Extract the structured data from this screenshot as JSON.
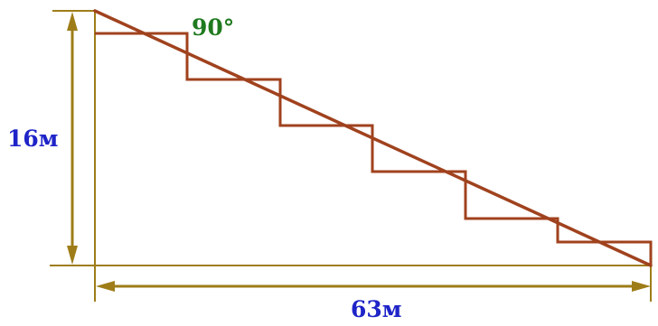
{
  "labels": {
    "height": "16м",
    "width": "63м",
    "angle": "90°"
  },
  "colors": {
    "stairs": "#a0421e",
    "dimension": "#9e7d18",
    "measure_text": "#1f24c8",
    "angle_text": "#1f7a1f"
  }
}
